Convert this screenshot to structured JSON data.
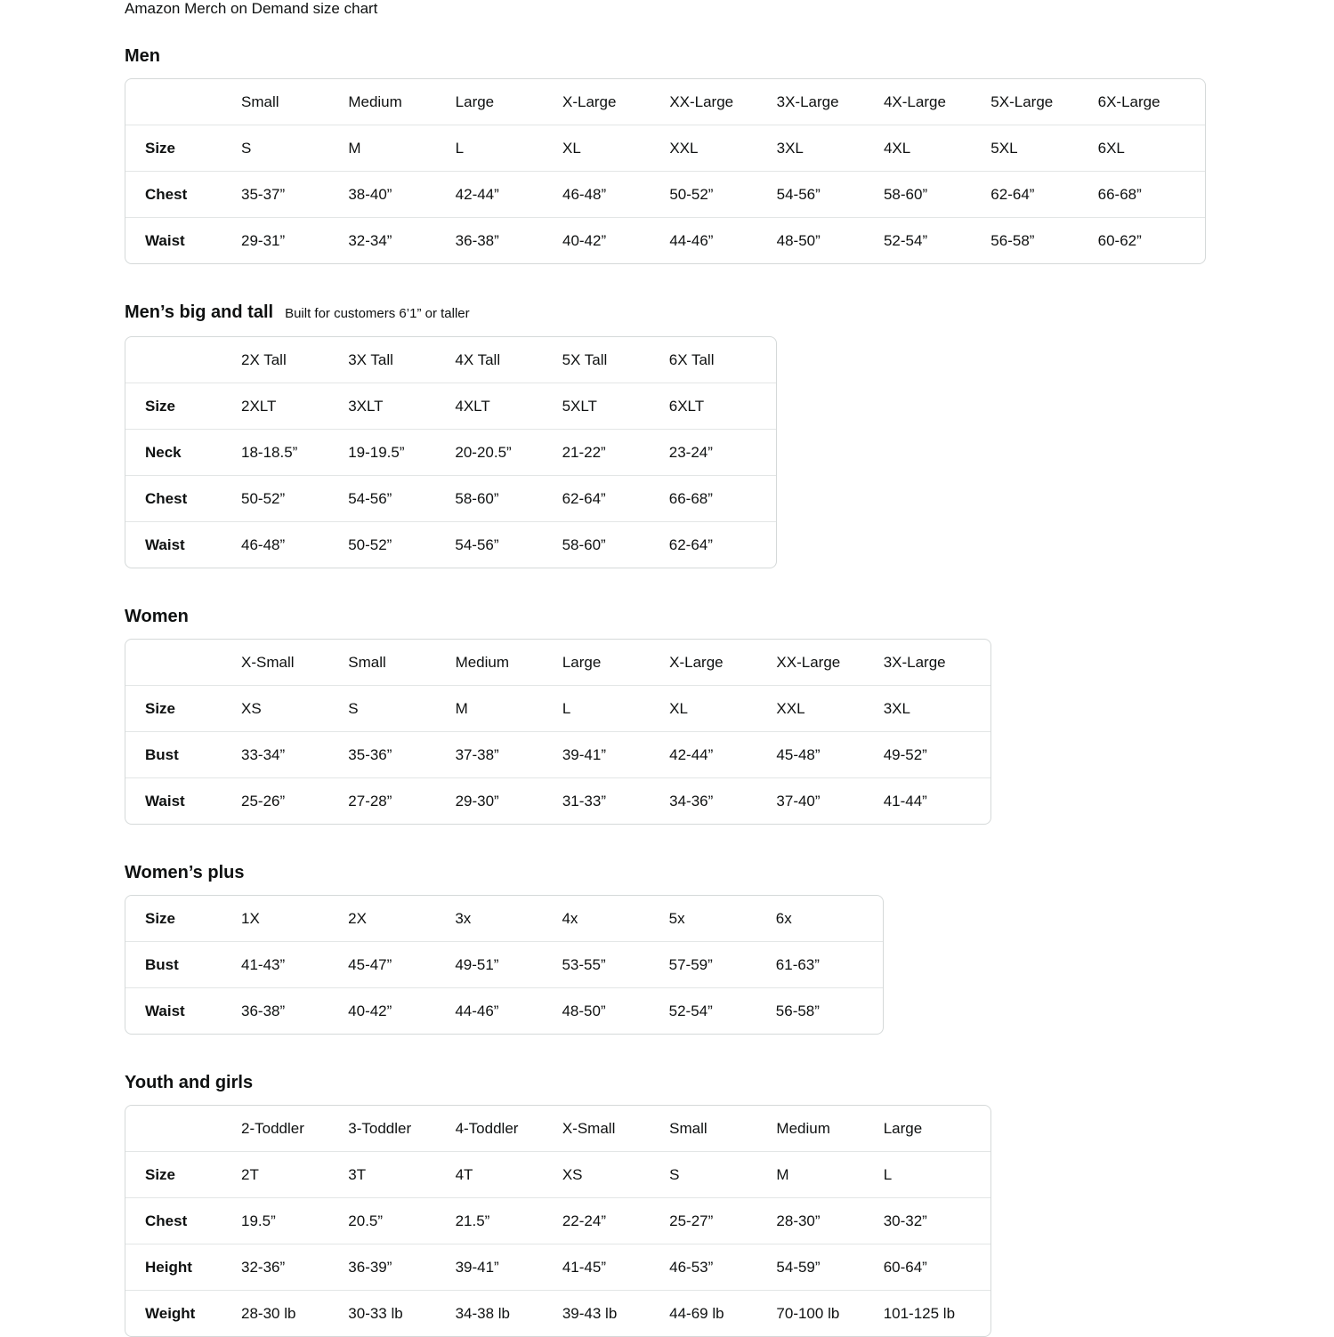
{
  "page_title": "Amazon Merch on Demand size chart",
  "sections": [
    {
      "id": "men",
      "heading": "Men",
      "subtitle": null,
      "columns": [
        "Small",
        "Medium",
        "Large",
        "X-Large",
        "XX-Large",
        "3X-Large",
        "4X-Large",
        "5X-Large",
        "6X-Large"
      ],
      "rows": [
        {
          "label": "Size",
          "values": [
            "S",
            "M",
            "L",
            "XL",
            "XXL",
            "3XL",
            "4XL",
            "5XL",
            "6XL"
          ]
        },
        {
          "label": "Chest",
          "values": [
            "35-37”",
            "38-40”",
            "42-44”",
            "46-48”",
            "50-52”",
            "54-56”",
            "58-60”",
            "62-64”",
            "66-68”"
          ]
        },
        {
          "label": "Waist",
          "values": [
            "29-31”",
            "32-34”",
            "36-38”",
            "40-42”",
            "44-46”",
            "48-50”",
            "52-54”",
            "56-58”",
            "60-62”"
          ]
        }
      ]
    },
    {
      "id": "mens-big-and-tall",
      "heading": "Men’s big and tall",
      "subtitle": "Built for customers 6’1” or taller",
      "columns": [
        "2X Tall",
        "3X Tall",
        "4X Tall",
        "5X Tall",
        "6X Tall"
      ],
      "rows": [
        {
          "label": "Size",
          "values": [
            "2XLT",
            "3XLT",
            "4XLT",
            "5XLT",
            "6XLT"
          ]
        },
        {
          "label": "Neck",
          "values": [
            "18-18.5”",
            "19-19.5”",
            "20-20.5”",
            "21-22”",
            "23-24”"
          ]
        },
        {
          "label": "Chest",
          "values": [
            "50-52”",
            "54-56”",
            "58-60”",
            "62-64”",
            "66-68”"
          ]
        },
        {
          "label": "Waist",
          "values": [
            "46-48”",
            "50-52”",
            "54-56”",
            "58-60”",
            "62-64”"
          ]
        }
      ]
    },
    {
      "id": "women",
      "heading": "Women",
      "subtitle": null,
      "columns": [
        "X-Small",
        "Small",
        "Medium",
        "Large",
        "X-Large",
        "XX-Large",
        "3X-Large"
      ],
      "rows": [
        {
          "label": "Size",
          "values": [
            "XS",
            "S",
            "M",
            "L",
            "XL",
            "XXL",
            "3XL"
          ]
        },
        {
          "label": "Bust",
          "values": [
            "33-34”",
            "35-36”",
            "37-38”",
            "39-41”",
            "42-44”",
            "45-48”",
            "49-52”"
          ]
        },
        {
          "label": "Waist",
          "values": [
            "25-26”",
            "27-28”",
            "29-30”",
            "31-33”",
            "34-36”",
            "37-40”",
            "41-44”"
          ]
        }
      ]
    },
    {
      "id": "womens-plus",
      "heading": "Women’s plus",
      "subtitle": null,
      "columns": null,
      "rows": [
        {
          "label": "Size",
          "values": [
            "1X",
            "2X",
            "3x",
            "4x",
            "5x",
            "6x"
          ]
        },
        {
          "label": "Bust",
          "values": [
            "41-43”",
            "45-47”",
            "49-51”",
            "53-55”",
            "57-59”",
            "61-63”"
          ]
        },
        {
          "label": "Waist",
          "values": [
            "36-38”",
            "40-42”",
            "44-46”",
            "48-50”",
            "52-54”",
            "56-58”"
          ]
        }
      ]
    },
    {
      "id": "youth-and-girls",
      "heading": "Youth and girls",
      "subtitle": null,
      "columns": [
        "2-Toddler",
        "3-Toddler",
        "4-Toddler",
        "X-Small",
        "Small",
        "Medium",
        "Large"
      ],
      "rows": [
        {
          "label": "Size",
          "values": [
            "2T",
            "3T",
            "4T",
            "XS",
            "S",
            "M",
            "L"
          ]
        },
        {
          "label": "Chest",
          "values": [
            "19.5”",
            "20.5”",
            "21.5”",
            "22-24”",
            "25-27”",
            "28-30”",
            "30-32”"
          ]
        },
        {
          "label": "Height",
          "values": [
            "32-36”",
            "36-39”",
            "39-41”",
            "41-45”",
            "46-53”",
            "54-59”",
            "60-64”"
          ]
        },
        {
          "label": "Weight",
          "values": [
            "28-30 lb",
            "30-33 lb",
            "34-38 lb",
            "39-43 lb",
            "44-69 lb",
            "70-100 lb",
            "101-125 lb"
          ]
        }
      ]
    }
  ]
}
